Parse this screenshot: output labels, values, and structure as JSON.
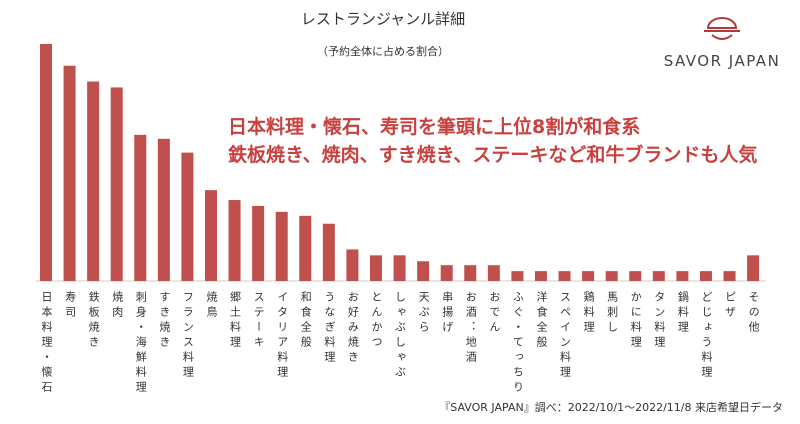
{
  "chart_data": {
    "type": "bar",
    "title": "レストランジャンル詳細",
    "subtitle": "（予約全体に占める割合）",
    "annotations": [
      "日本料理・懐石、寿司を筆頭に上位8割が和食系",
      "鉄板焼き、焼肉、すき焼き、ステーキなど和牛ブランドも人気"
    ],
    "logo": "SAVOR JAPAN",
    "source": "『SAVOR JAPAN』調べ：2022/10/1～2022/11/8 来店希望日データ",
    "color": "#c0504d",
    "categories": [
      "日本料理・懐石",
      "寿司",
      "鉄板焼き",
      "焼肉",
      "刺身・海鮮料理",
      "すき焼き",
      "フランス料理",
      "焼鳥",
      "郷土料理",
      "ステーキ",
      "イタリア料理",
      "和食全般",
      "うなぎ料理",
      "お好み焼き",
      "とんかつ",
      "しゃぶしゃぶ",
      "天ぷら",
      "串揚げ",
      "お酒：地酒",
      "おでん",
      "ふぐ・てっちり",
      "洋食全般",
      "スペイン料理",
      "鶏料理",
      "馬刺し",
      "かに料理",
      "タン料理",
      "鍋料理",
      "どじょう料理",
      "ピザ",
      "その他"
    ],
    "values": [
      12.0,
      10.9,
      10.1,
      9.8,
      7.4,
      7.2,
      6.5,
      4.6,
      4.1,
      3.8,
      3.5,
      3.3,
      2.9,
      1.6,
      1.3,
      1.3,
      1.0,
      0.8,
      0.8,
      0.8,
      0.5,
      0.5,
      0.5,
      0.5,
      0.5,
      0.5,
      0.5,
      0.5,
      0.5,
      0.5,
      1.3
    ]
  }
}
